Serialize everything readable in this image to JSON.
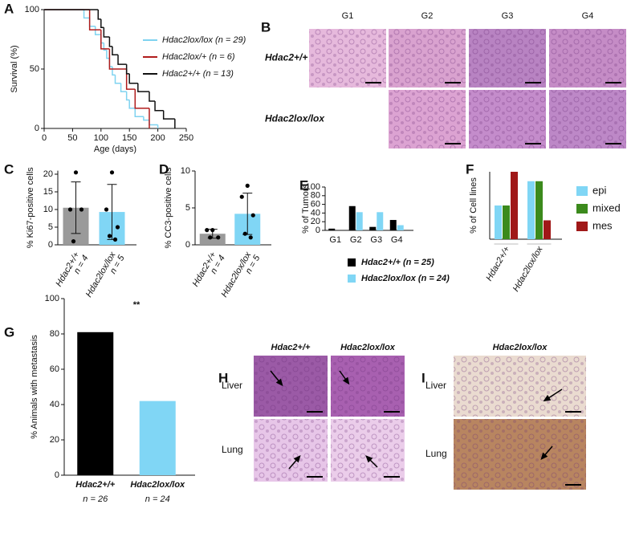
{
  "chart_data": [
    {
      "panel": "A",
      "type": "line",
      "step": true,
      "xlabel": "Age (days)",
      "ylabel": "Survival (%)",
      "xlim": [
        0,
        250
      ],
      "xticks": [
        0,
        50,
        100,
        150,
        200,
        250
      ],
      "ylim": [
        0,
        100
      ],
      "yticks": [
        0,
        50,
        100
      ],
      "series": [
        {
          "name": "Hdac2lox/lox (n = 29)",
          "color": "#7fd3f0",
          "x": [
            0,
            70,
            80,
            90,
            100,
            105,
            110,
            115,
            120,
            125,
            135,
            145,
            150,
            160,
            175,
            185,
            200
          ],
          "values": [
            100,
            93,
            86,
            79,
            72,
            66,
            59,
            52,
            45,
            38,
            31,
            24,
            17,
            10,
            7,
            3,
            0
          ]
        },
        {
          "name": "Hdac2lox/+ (n = 6)",
          "color": "#b01c1c",
          "x": [
            0,
            80,
            100,
            115,
            145,
            160,
            185
          ],
          "values": [
            100,
            83,
            67,
            50,
            33,
            17,
            0
          ]
        },
        {
          "name": "Hdac2+/+ (n = 13)",
          "color": "#111111",
          "x": [
            0,
            95,
            100,
            105,
            115,
            120,
            130,
            145,
            150,
            165,
            185,
            195,
            210,
            230
          ],
          "values": [
            100,
            92,
            85,
            77,
            69,
            62,
            54,
            46,
            38,
            31,
            23,
            15,
            8,
            0
          ]
        }
      ]
    },
    {
      "panel": "C",
      "type": "bar",
      "ylabel": "% Ki67-positive cells",
      "ylim": [
        0,
        21
      ],
      "yticks": [
        0,
        5,
        10,
        15,
        20
      ],
      "categories": [
        "Hdac2+/+",
        "Hdac2lox/lox"
      ],
      "group_sizes": [
        "n = 4",
        "n = 5"
      ],
      "colors": [
        "#9a9a9a",
        "#80d6f5"
      ],
      "values": [
        10.5,
        9.3
      ],
      "errors": [
        7.3,
        7.8
      ],
      "points": [
        [
          20.5,
          10,
          10,
          1
        ],
        [
          20.5,
          10,
          5,
          2.5,
          1.5
        ]
      ]
    },
    {
      "panel": "D",
      "type": "bar",
      "ylabel": "% CC3-positive cells",
      "ylim": [
        0,
        10
      ],
      "yticks": [
        0,
        5,
        10
      ],
      "categories": [
        "Hdac2+/+",
        "Hdac2lox/lox"
      ],
      "group_sizes": [
        "n = 4",
        "n = 5"
      ],
      "colors": [
        "#9a9a9a",
        "#80d6f5"
      ],
      "values": [
        1.5,
        4.2
      ],
      "errors": [
        0.6,
        2.8
      ],
      "points": [
        [
          2,
          2,
          1,
          1
        ],
        [
          8,
          6.5,
          4,
          1.5,
          1
        ]
      ]
    },
    {
      "panel": "E",
      "type": "bar",
      "ylabel": "% of Tumors",
      "ylim": [
        0,
        100
      ],
      "yticks": [
        0,
        20,
        40,
        60,
        80,
        100
      ],
      "categories": [
        "G1",
        "G2",
        "G3",
        "G4"
      ],
      "legend": "bottom",
      "series": [
        {
          "name": "Hdac2+/+ (n = 25)",
          "color": "#000000",
          "values": [
            4,
            56,
            8,
            24
          ]
        },
        {
          "name": "Hdac2lox/lox (n = 24)",
          "color": "#80d6f5",
          "values": [
            0,
            42,
            42,
            12
          ]
        }
      ]
    },
    {
      "panel": "F",
      "type": "bar",
      "ylabel": "% of Cell lines",
      "ylim": [
        0,
        50
      ],
      "categories": [
        "Hdac2+/+",
        "Hdac2lox/lox"
      ],
      "legend": "right",
      "series": [
        {
          "name": "epi",
          "color": "#80d6f5",
          "values": [
            25,
            43
          ]
        },
        {
          "name": "mixed",
          "color": "#3b8a1c",
          "values": [
            25,
            43
          ]
        },
        {
          "name": "mes",
          "color": "#a01818",
          "values": [
            50,
            14
          ]
        }
      ]
    },
    {
      "panel": "G",
      "type": "bar",
      "ylabel": "% Animals with metastasis",
      "ylim": [
        0,
        100
      ],
      "yticks": [
        0,
        20,
        40,
        60,
        80,
        100
      ],
      "categories": [
        "Hdac2+/+",
        "Hdac2lox/lox"
      ],
      "group_sizes": [
        "n = 26",
        "n = 24"
      ],
      "colors": [
        "#000000",
        "#80d6f5"
      ],
      "values": [
        81,
        42
      ],
      "annotation": "**"
    }
  ],
  "figures": [
    {
      "panel": "B",
      "columns": [
        "G1",
        "G2",
        "G3",
        "G4"
      ],
      "rows": [
        "Hdac2+/+",
        "Hdac2lox/lox"
      ]
    },
    {
      "panel": "H",
      "columns": [
        "Hdac2+/+",
        "Hdac2lox/lox"
      ],
      "rows": [
        "Liver",
        "Lung"
      ]
    },
    {
      "panel": "I",
      "columns": [
        "Hdac2lox/lox"
      ],
      "rows": [
        "Liver",
        "Lung"
      ]
    }
  ]
}
